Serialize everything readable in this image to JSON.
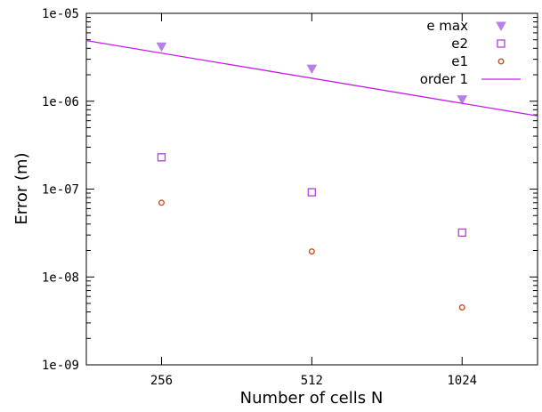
{
  "chart_data": {
    "type": "scatter",
    "title": "",
    "xlabel": "Number of cells N",
    "ylabel": "Error (m)",
    "x_scale": "log2",
    "y_scale": "log",
    "xlim": [
      181,
      1450
    ],
    "ylim": [
      1e-09,
      1e-05
    ],
    "x_ticks": [
      256,
      512,
      1024
    ],
    "x_tick_labels": [
      "256",
      "512",
      "1024"
    ],
    "y_ticks": [
      1e-09,
      1e-08,
      1e-07,
      1e-06,
      1e-05
    ],
    "y_tick_labels": [
      "1e-09",
      "1e-08",
      "1e-07",
      "1e-06",
      "1e-05"
    ],
    "grid": false,
    "legend_position": "top-right",
    "series": [
      {
        "name": "e max",
        "marker": "triangle-down-filled",
        "color": "#b77fe8",
        "x": [
          256,
          512,
          1024
        ],
        "y": [
          4.2e-06,
          2.35e-06,
          1.05e-06
        ]
      },
      {
        "name": "e2",
        "marker": "square-open",
        "color": "#b34fe0",
        "x": [
          256,
          512,
          1024
        ],
        "y": [
          2.3e-07,
          9.2e-08,
          3.2e-08
        ]
      },
      {
        "name": "e1",
        "marker": "circle-open",
        "color": "#c8501f",
        "x": [
          256,
          512,
          1024
        ],
        "y": [
          7e-08,
          1.95e-08,
          4.5e-09
        ]
      },
      {
        "name": "order 1",
        "marker": "line",
        "color": "#c21fe8",
        "x": [
          181,
          1450
        ],
        "y": [
          4.9e-06,
          6.8e-07
        ]
      }
    ]
  }
}
